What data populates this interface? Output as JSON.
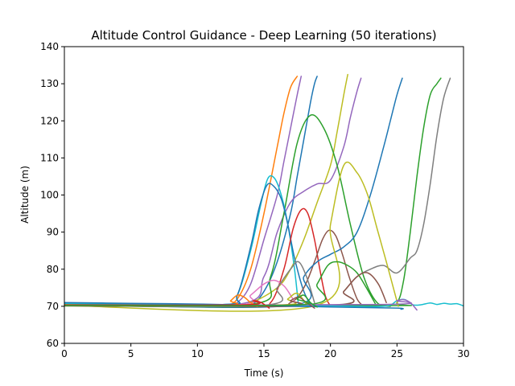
{
  "chart_data": {
    "type": "line",
    "title": "Altitude Control Guidance - Deep Learning (50 iterations)",
    "xlabel": "Time (s)",
    "ylabel": "Altitude (m)",
    "xlim": [
      0,
      30
    ],
    "ylim": [
      60,
      140
    ],
    "xticks": [
      0,
      5,
      10,
      15,
      20,
      25,
      30
    ],
    "yticks": [
      60,
      70,
      80,
      90,
      100,
      110,
      120,
      130,
      140
    ],
    "grid": false,
    "series": [
      {
        "color": "#ff7f0e",
        "x": [
          0,
          5,
          10,
          12,
          13,
          14,
          15,
          16,
          16.5,
          17,
          17.5
        ],
        "y": [
          70.5,
          70.5,
          70.3,
          70.2,
          72,
          80,
          95,
          113,
          122,
          129,
          132
        ]
      },
      {
        "color": "#9467bd",
        "x": [
          0,
          10,
          12,
          13,
          14,
          15,
          16,
          16.5,
          17,
          17.5,
          17.8
        ],
        "y": [
          70.3,
          70.2,
          70.2,
          71,
          76,
          88,
          100,
          109,
          118,
          127,
          132
        ]
      },
      {
        "color": "#1f77b4",
        "x": [
          0,
          12,
          14,
          15,
          16,
          17,
          17.5,
          18,
          18.5,
          18.8,
          19
        ],
        "y": [
          70.2,
          70.2,
          70.5,
          74,
          82,
          95,
          105,
          115,
          125,
          130,
          132
        ]
      },
      {
        "color": "#bcbd22",
        "x": [
          0,
          12,
          14,
          16,
          17,
          18,
          19,
          20,
          20.5,
          21,
          21.3
        ],
        "y": [
          70.1,
          70.2,
          71,
          75,
          80,
          88,
          98,
          108,
          117,
          127,
          132.5
        ]
      },
      {
        "color": "#9467bd",
        "x": [
          0,
          13,
          15,
          16,
          17,
          18,
          19,
          20,
          21,
          21.5,
          22,
          22.3
        ],
        "y": [
          70.4,
          70.5,
          78,
          90,
          98,
          101,
          103,
          104,
          113,
          121,
          128,
          131.5
        ]
      },
      {
        "color": "#2ca02c",
        "x": [
          0,
          14,
          15.5,
          16.5,
          17.5,
          18.5,
          19.5,
          20.5,
          21.5,
          22.5,
          23.5,
          24.5
        ],
        "y": [
          70.3,
          70.5,
          78,
          95,
          114,
          121.5,
          118,
          108,
          92,
          78,
          71,
          70
        ]
      },
      {
        "color": "#17becf",
        "x": [
          0,
          12,
          13,
          14,
          14.8,
          15.3,
          15.8,
          16.3,
          16.8,
          17.3,
          17.6
        ],
        "y": [
          70.5,
          70.5,
          73,
          85,
          98,
          104.5,
          104.5,
          100,
          92,
          80,
          70
        ]
      },
      {
        "color": "#1f77b4",
        "x": [
          0,
          12,
          13,
          14,
          14.6,
          15.2,
          15.7,
          16.3,
          16.8,
          17.3,
          18,
          18.6
        ],
        "y": [
          70.7,
          70.5,
          73,
          86,
          96,
          102.5,
          102.5,
          99,
          92,
          83,
          74,
          70
        ]
      },
      {
        "color": "#d62728",
        "x": [
          0,
          14,
          15.5,
          16.5,
          17.2,
          17.8,
          18.3,
          18.8,
          19.2,
          19.6,
          20
        ],
        "y": [
          70.3,
          70.3,
          71,
          80,
          91,
          96,
          95,
          88,
          80,
          73,
          70
        ]
      },
      {
        "color": "#8c564b",
        "x": [
          0,
          15,
          17,
          18,
          18.8,
          19.4,
          19.9,
          20.4,
          20.9,
          21.4,
          22,
          22.5
        ],
        "y": [
          70.2,
          70.3,
          71,
          75,
          82,
          88,
          90.5,
          89,
          84,
          78,
          72,
          70
        ]
      },
      {
        "color": "#1f77b4",
        "x": [
          0,
          17,
          18,
          19,
          20,
          21,
          22,
          23,
          24,
          24.5,
          25,
          25.4
        ],
        "y": [
          70.5,
          70.2,
          78,
          82,
          84,
          86,
          90,
          100,
          113,
          120,
          127,
          131.5
        ]
      },
      {
        "color": "#2ca02c",
        "x": [
          0,
          24,
          25,
          25.5,
          26,
          26.5,
          27,
          27.5,
          28,
          28.3
        ],
        "y": [
          70.2,
          70.2,
          71,
          77,
          90,
          105,
          118,
          127,
          130,
          131.5
        ]
      },
      {
        "color": "#7f7f7f",
        "x": [
          0,
          20,
          21,
          22,
          23,
          24,
          25,
          26,
          26.5,
          27,
          27.5,
          28,
          28.5,
          29
        ],
        "y": [
          70.3,
          70.3,
          74,
          78,
          80,
          81,
          79,
          83,
          85,
          92,
          103,
          116,
          126,
          131.5
        ]
      },
      {
        "color": "#bcbd22",
        "x": [
          0,
          19,
          20,
          21,
          22,
          22.8,
          23.5,
          24.2,
          24.8,
          25.1
        ],
        "y": [
          70.2,
          70.3,
          92,
          108,
          106,
          100,
          91,
          82,
          74,
          70
        ]
      },
      {
        "color": "#2ca02c",
        "x": [
          0,
          18,
          19,
          19.8,
          20.5,
          21.3,
          22,
          22.7,
          23.4
        ],
        "y": [
          70.2,
          70.3,
          76,
          81,
          82,
          81,
          79,
          75,
          70.5
        ]
      },
      {
        "color": "#8c564b",
        "x": [
          0,
          20,
          21,
          22,
          22.8,
          23.6,
          24.2
        ],
        "y": [
          70.1,
          70.2,
          74,
          78,
          79,
          76,
          71
        ]
      },
      {
        "color": "#e377c2",
        "x": [
          0,
          13,
          14,
          15,
          15.8,
          16.5,
          17,
          17.5
        ],
        "y": [
          70.3,
          70.4,
          73,
          76,
          77,
          75.5,
          73,
          70
        ]
      },
      {
        "color": "#ff7f0e",
        "x": [
          0,
          12,
          12.5,
          13,
          13.5,
          14,
          14.5
        ],
        "y": [
          70.4,
          70.3,
          71.5,
          73,
          72.5,
          71,
          70
        ]
      },
      {
        "color": "#7f7f7f",
        "x": [
          0,
          15,
          16,
          17,
          17.6,
          18.2,
          18.8
        ],
        "y": [
          70.2,
          70.3,
          75,
          80,
          82,
          78,
          71
        ]
      },
      {
        "color": "#17becf",
        "x": [
          0,
          5,
          10,
          15,
          20,
          24,
          25,
          25.6,
          26.2,
          26.8,
          27.5,
          28,
          28.5,
          29,
          29.5,
          30
        ],
        "y": [
          70.8,
          70.7,
          70.4,
          70.2,
          70.1,
          70,
          71.5,
          71.8,
          70.4,
          70.4,
          70.9,
          70.5,
          70.8,
          70.6,
          70.7,
          70.1
        ]
      },
      {
        "color": "#1f77b4",
        "x": [
          0,
          5,
          10,
          15,
          20,
          25,
          25.3
        ],
        "y": [
          71,
          70.8,
          70.6,
          70.2,
          69.8,
          69.5,
          69.2
        ]
      },
      {
        "color": "#9467bd",
        "x": [
          0,
          24,
          25,
          25.5,
          26,
          26.5
        ],
        "y": [
          70.2,
          70.5,
          71.5,
          71.8,
          71,
          69
        ]
      },
      {
        "color": "#bcbd22",
        "x": [
          0,
          16,
          16.8,
          17.5,
          18.2
        ],
        "y": [
          70.3,
          70.3,
          72,
          73.5,
          70.5
        ]
      },
      {
        "color": "#8c564b",
        "x": [
          0,
          16.5,
          17,
          17.6,
          18.2,
          18.8
        ],
        "y": [
          70.2,
          70.3,
          71.5,
          72.5,
          71,
          69.5
        ]
      },
      {
        "color": "#d62728",
        "x": [
          0,
          13.5,
          14.2,
          14.8,
          15.4
        ],
        "y": [
          70.3,
          70.4,
          71.5,
          71,
          69.5
        ]
      },
      {
        "color": "#2ca02c",
        "x": [
          0,
          17,
          17.5,
          18,
          18.5,
          19
        ],
        "y": [
          70.2,
          70.3,
          72,
          73,
          71,
          69.8
        ]
      }
    ]
  }
}
